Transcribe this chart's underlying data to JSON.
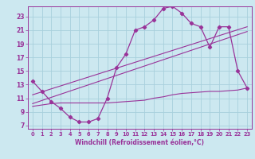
{
  "xlabel": "Windchill (Refroidissement éolien,°C)",
  "bg_color": "#cce8f0",
  "grid_color": "#a8d0dc",
  "line_color": "#993399",
  "spine_color": "#993399",
  "xlim": [
    -0.5,
    23.5
  ],
  "ylim": [
    6.5,
    24.5
  ],
  "xticks": [
    0,
    1,
    2,
    3,
    4,
    5,
    6,
    7,
    8,
    9,
    10,
    11,
    12,
    13,
    14,
    15,
    16,
    17,
    18,
    19,
    20,
    21,
    22,
    23
  ],
  "yticks": [
    7,
    9,
    11,
    13,
    15,
    17,
    19,
    21,
    23
  ],
  "curve1_x": [
    0,
    1,
    2,
    3,
    4,
    5,
    6,
    7,
    8,
    9,
    10,
    11,
    12,
    13,
    14,
    15,
    16,
    17,
    18,
    19,
    20,
    21,
    22,
    23
  ],
  "curve1_y": [
    13.5,
    12.0,
    10.5,
    9.5,
    8.2,
    7.5,
    7.5,
    8.0,
    11.0,
    15.5,
    17.5,
    21.0,
    21.5,
    22.5,
    24.2,
    24.5,
    23.5,
    22.0,
    21.5,
    18.5,
    21.5,
    21.5,
    15.0,
    12.5
  ],
  "line2_x": [
    0,
    23
  ],
  "line2_y": [
    11.5,
    21.5
  ],
  "line3_x": [
    0,
    23
  ],
  "line3_y": [
    10.2,
    20.8
  ],
  "curve4_x": [
    0,
    1,
    2,
    3,
    4,
    5,
    6,
    7,
    8,
    9,
    10,
    11,
    12,
    13,
    14,
    15,
    16,
    17,
    18,
    19,
    20,
    21,
    22,
    23
  ],
  "curve4_y": [
    9.8,
    10.0,
    10.2,
    10.3,
    10.3,
    10.3,
    10.3,
    10.3,
    10.3,
    10.4,
    10.5,
    10.6,
    10.7,
    11.0,
    11.2,
    11.5,
    11.7,
    11.8,
    11.9,
    12.0,
    12.0,
    12.1,
    12.2,
    12.5
  ]
}
